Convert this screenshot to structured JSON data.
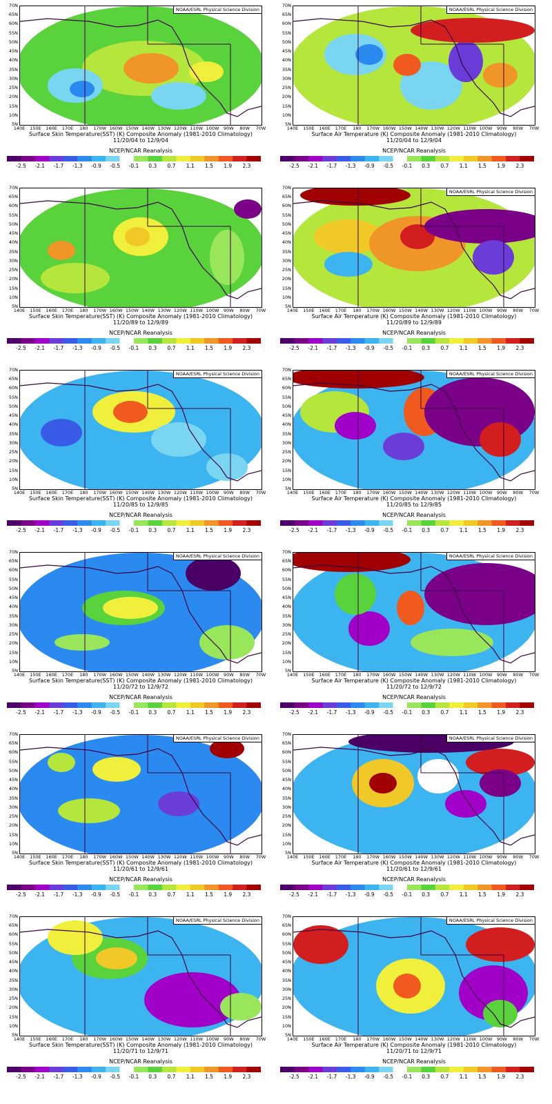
{
  "attribution": "NOAA/ESRL Physical Science Division",
  "source": "NCEP/NCAR Reanalysis",
  "lat_labels": [
    "70N",
    "65N",
    "60N",
    "55N",
    "50N",
    "45N",
    "40N",
    "35N",
    "30N",
    "25N",
    "20N",
    "15N",
    "10N",
    "5N"
  ],
  "lon_labels": [
    "140E",
    "150E",
    "160E",
    "170E",
    "180",
    "170W",
    "160W",
    "150W",
    "140W",
    "130W",
    "120W",
    "110W",
    "100W",
    "90W",
    "80W",
    "70W"
  ],
  "colorbar": {
    "tick_labels": [
      "-2.5",
      "-2.1",
      "-1.7",
      "-1.3",
      "-0.9",
      "-0.5",
      "-0.1",
      "0.3",
      "0.7",
      "1.1",
      "1.5",
      "1.9",
      "2.3"
    ],
    "colors": [
      "#4b0066",
      "#7a0088",
      "#a000c8",
      "#6a3cd8",
      "#3a5ae8",
      "#2a8af0",
      "#3cb4f0",
      "#7ad6f0",
      "#ffffff",
      "#9ae65a",
      "#5ad23c",
      "#b4e63c",
      "#f0f03c",
      "#f0c828",
      "#f09628",
      "#f05a1e",
      "#d21e1e",
      "#a00000"
    ]
  },
  "panels": [
    {
      "variable": "SST",
      "title": "Surface Skin Temperature(SST) (K) Composite Anomaly (1981-2010 Climatology)",
      "dates": "11/20/04   to 12/9/04"
    },
    {
      "variable": "AIR",
      "title": "Surface Air Temperature (K) Composite Anomaly (1981-2010 Climatology)",
      "dates": "11/20/04   to 12/9/04"
    },
    {
      "variable": "SST",
      "title": "Surface Skin Temperature(SST) (K) Composite Anomaly (1981-2010 Climatology)",
      "dates": "11/20/89   to 12/9/89"
    },
    {
      "variable": "AIR",
      "title": "Surface Air Temperature (K) Composite Anomaly (1981-2010 Climatology)",
      "dates": "11/20/89   to 12/9/89"
    },
    {
      "variable": "SST",
      "title": "Surface Skin Temperature(SST) (K) Composite Anomaly (1981-2010 Climatology)",
      "dates": "11/20/85   to 12/9/85"
    },
    {
      "variable": "AIR",
      "title": "Surface Air Temperature (K) Composite Anomaly (1981-2010 Climatology)",
      "dates": "11/20/85   to 12/9/85"
    },
    {
      "variable": "SST",
      "title": "Surface Skin Temperature(SST) (K) Composite Anomaly (1981-2010 Climatology)",
      "dates": "11/20/72   to 12/9/72"
    },
    {
      "variable": "AIR",
      "title": "Surface Air Temperature (K) Composite Anomaly (1981-2010 Climatology)",
      "dates": "11/20/72   to 12/9/72"
    },
    {
      "variable": "SST",
      "title": "Surface Skin Temperature(SST) (K) Composite Anomaly (1981-2010 Climatology)",
      "dates": "11/20/61   to 12/9/61"
    },
    {
      "variable": "AIR",
      "title": "Surface Air Temperature (K) Composite Anomaly (1981-2010 Climatology)",
      "dates": "11/20/61   to 12/9/61"
    },
    {
      "variable": "SST",
      "title": "Surface Skin Temperature(SST) (K) Composite Anomaly (1981-2010 Climatology)",
      "dates": "11/20/71   to 12/9/71"
    },
    {
      "variable": "AIR",
      "title": "Surface Air Temperature (K) Composite Anomaly (1981-2010 Climatology)",
      "dates": "11/20/71   to 12/9/71"
    }
  ]
}
